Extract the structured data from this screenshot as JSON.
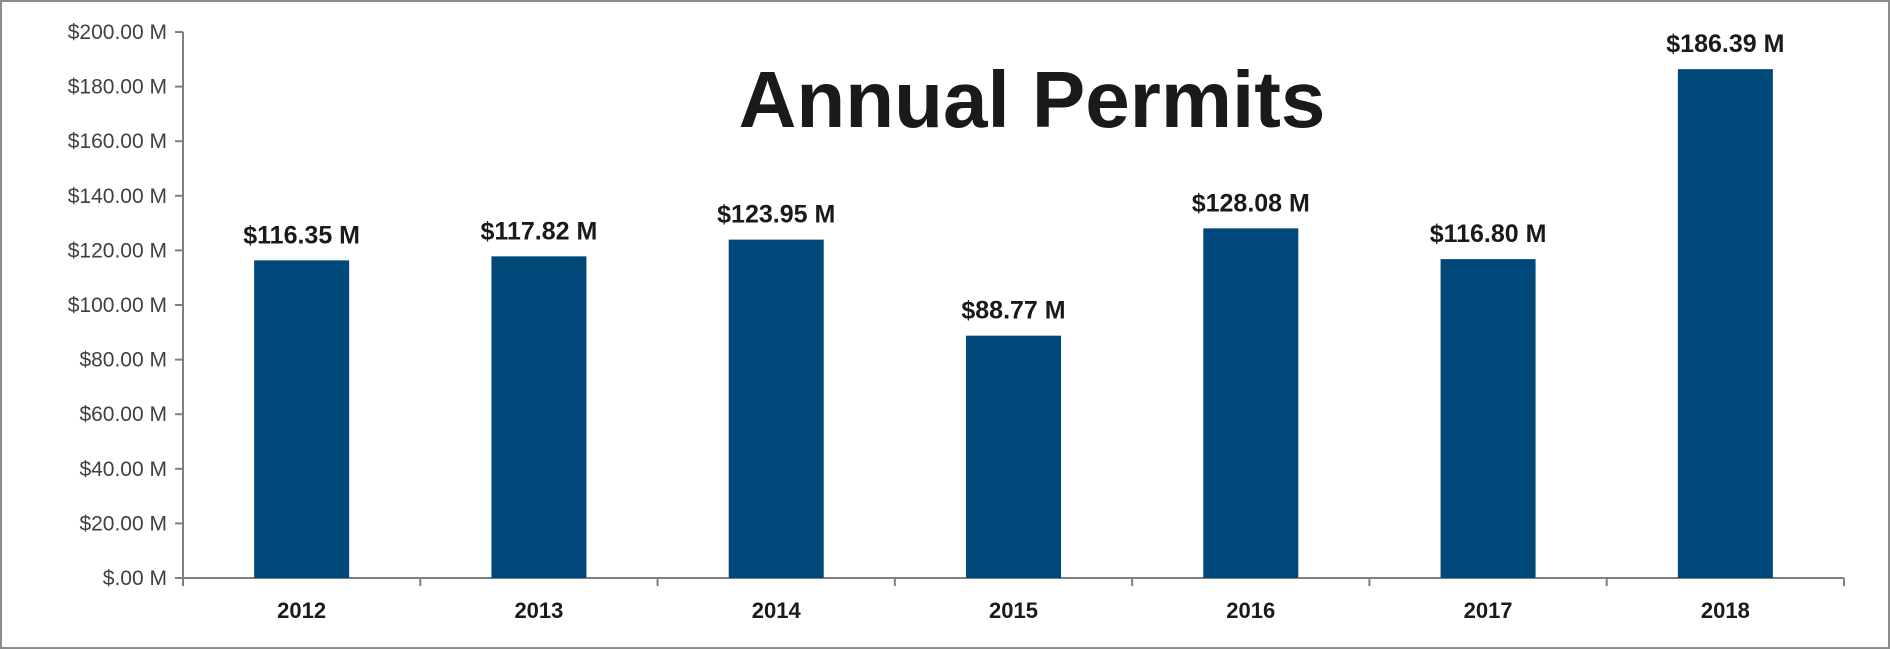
{
  "chart_data": {
    "type": "bar",
    "title": "Annual Permits",
    "categories": [
      "2012",
      "2013",
      "2014",
      "2015",
      "2016",
      "2017",
      "2018"
    ],
    "values": [
      116.35,
      117.82,
      123.95,
      88.77,
      128.08,
      116.8,
      186.39
    ],
    "data_labels": [
      "$116.35 M",
      "$117.82 M",
      "$123.95 M",
      "$88.77 M",
      "$128.08 M",
      "$116.80 M",
      "$186.39 M"
    ],
    "y_ticks": [
      0,
      20,
      40,
      60,
      80,
      100,
      120,
      140,
      160,
      180,
      200
    ],
    "y_tick_labels": [
      "$.00 M",
      "$20.00 M",
      "$40.00 M",
      "$60.00 M",
      "$80.00 M",
      "$100.00 M",
      "$120.00 M",
      "$140.00 M",
      "$160.00 M",
      "$180.00 M",
      "$200.00 M"
    ],
    "ylim": [
      0,
      200
    ],
    "xlabel": "",
    "ylabel": "",
    "grid": false,
    "legend": "none",
    "bar_color": "#00477a"
  }
}
